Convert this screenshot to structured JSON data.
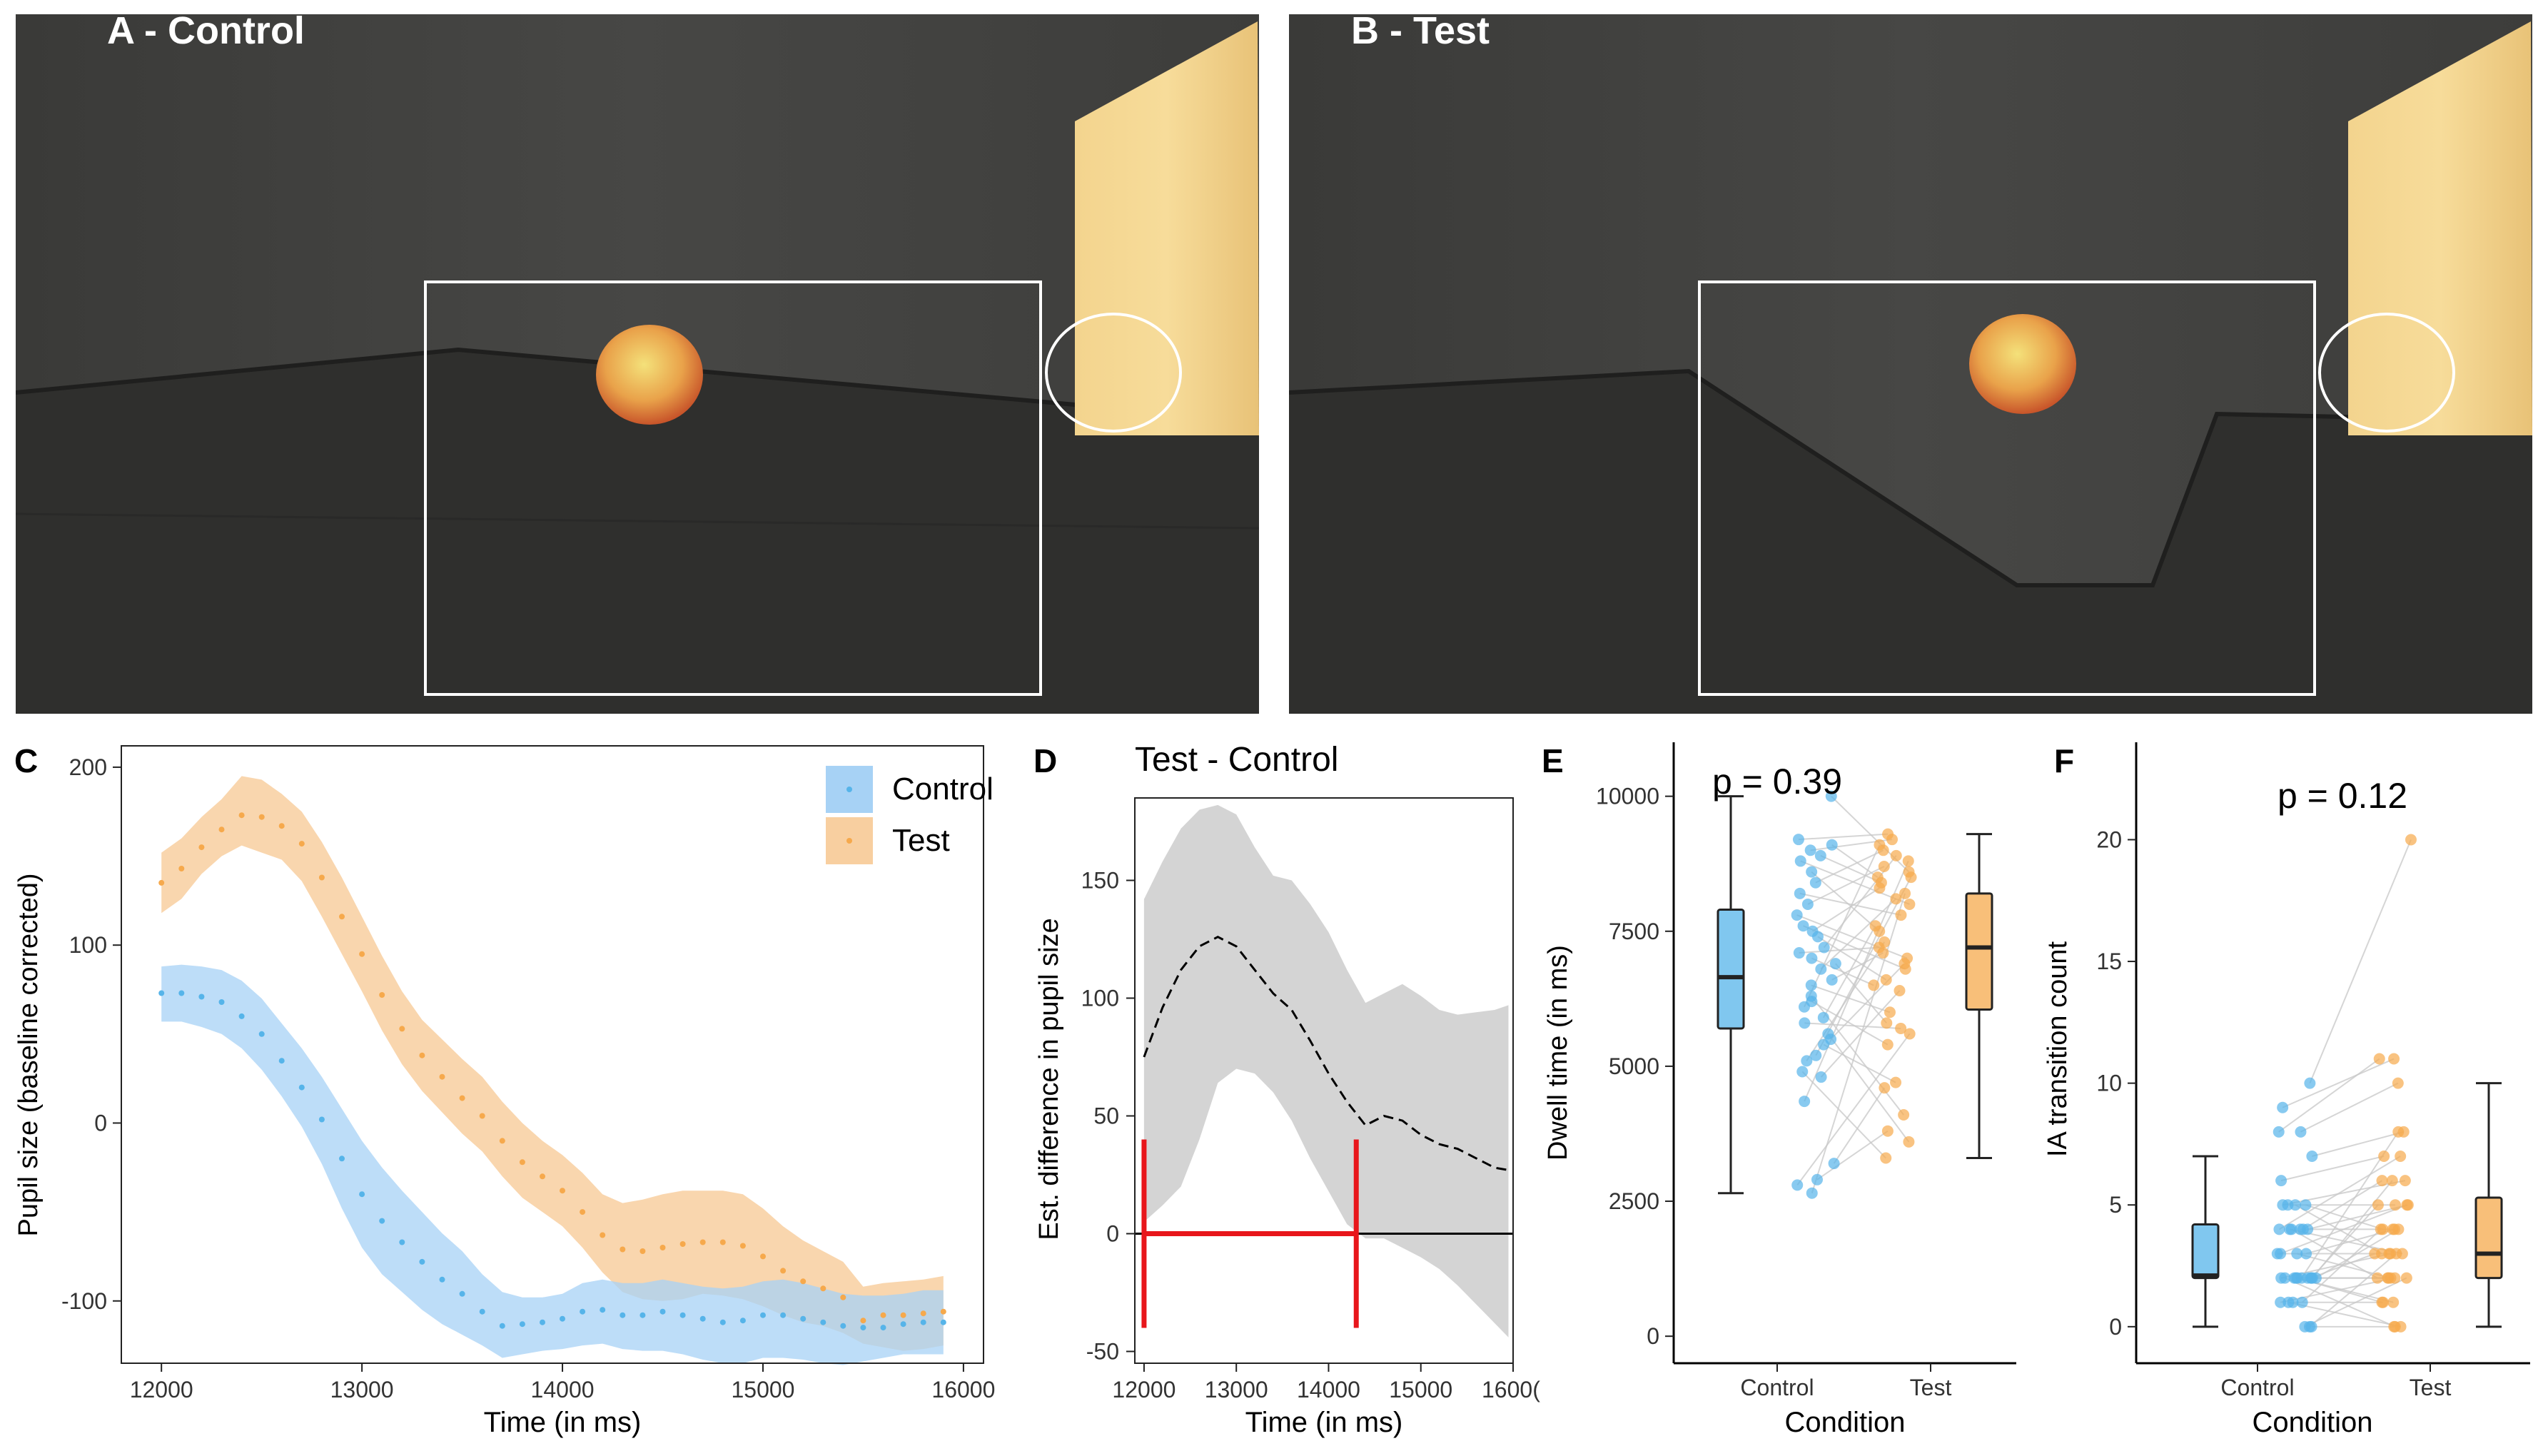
{
  "photos": {
    "a": {
      "label": "A - Control"
    },
    "b": {
      "label": "B - Test"
    }
  },
  "panel_letters": {
    "c": "C",
    "d": "D",
    "e": "E",
    "f": "F"
  },
  "colors": {
    "control": "#56B4E9",
    "test": "#F6A94C",
    "ribbon_control": "#A7D2F5",
    "ribbon_test": "#F8CFA0",
    "ci_gray": "#D4D4D4",
    "sig_red": "#E8161B"
  },
  "chart_data": [
    {
      "id": "C",
      "type": "line",
      "xlabel": "Time (in ms)",
      "ylabel": "Pupil size (baseline corrected)",
      "xlim": [
        11800,
        16100
      ],
      "ylim": [
        -135,
        212
      ],
      "xticks": [
        "12000",
        "13000",
        "14000",
        "15000",
        "16000"
      ],
      "yticks": [
        "200",
        "100",
        "0",
        "-100"
      ],
      "legend_position": "top-right",
      "series": [
        {
          "name": "Control",
          "x": [
            12000,
            12100,
            12200,
            12300,
            12400,
            12500,
            12600,
            12700,
            12800,
            12900,
            13000,
            13100,
            13200,
            13300,
            13400,
            13500,
            13600,
            13700,
            13800,
            13900,
            14000,
            14100,
            14200,
            14300,
            14400,
            14500,
            14600,
            14700,
            14800,
            14900,
            15000,
            15100,
            15200,
            15300,
            15400,
            15500,
            15600,
            15700,
            15800,
            15900
          ],
          "mean": [
            73,
            73,
            71,
            68,
            60,
            50,
            35,
            20,
            2,
            -20,
            -40,
            -55,
            -67,
            -78,
            -88,
            -96,
            -106,
            -114,
            -113,
            -112,
            -110,
            -106,
            -105,
            -108,
            -108,
            -106,
            -108,
            -110,
            -112,
            -111,
            -108,
            -108,
            -110,
            -112,
            -114,
            -115,
            -115,
            -113,
            -112,
            -112
          ],
          "lower": [
            57,
            57,
            54,
            50,
            42,
            30,
            15,
            -2,
            -23,
            -48,
            -70,
            -85,
            -95,
            -105,
            -113,
            -119,
            -125,
            -132,
            -130,
            -128,
            -127,
            -125,
            -124,
            -127,
            -128,
            -128,
            -130,
            -133,
            -135,
            -135,
            -132,
            -132,
            -133,
            -135,
            -136,
            -134,
            -132,
            -130,
            -130,
            -130
          ],
          "upper": [
            88,
            89,
            88,
            86,
            80,
            70,
            56,
            42,
            26,
            8,
            -10,
            -25,
            -38,
            -50,
            -62,
            -72,
            -85,
            -95,
            -98,
            -98,
            -96,
            -90,
            -88,
            -90,
            -90,
            -88,
            -90,
            -92,
            -93,
            -92,
            -89,
            -88,
            -90,
            -93,
            -96,
            -97,
            -97,
            -96,
            -94,
            -94
          ]
        },
        {
          "name": "Test",
          "x": [
            12000,
            12100,
            12200,
            12300,
            12400,
            12500,
            12600,
            12700,
            12800,
            12900,
            13000,
            13100,
            13200,
            13300,
            13400,
            13500,
            13600,
            13700,
            13800,
            13900,
            14000,
            14100,
            14200,
            14300,
            14400,
            14500,
            14600,
            14700,
            14800,
            14900,
            15000,
            15100,
            15200,
            15300,
            15400,
            15500,
            15600,
            15700,
            15800,
            15900
          ],
          "mean": [
            135,
            143,
            155,
            165,
            173,
            172,
            167,
            157,
            138,
            116,
            95,
            72,
            53,
            38,
            26,
            14,
            4,
            -10,
            -22,
            -30,
            -38,
            -50,
            -63,
            -71,
            -72,
            -70,
            -68,
            -67,
            -67,
            -69,
            -75,
            -83,
            -89,
            -93,
            -98,
            -111,
            -108,
            -108,
            -107,
            -106
          ],
          "lower": [
            118,
            126,
            140,
            150,
            156,
            152,
            148,
            136,
            116,
            95,
            74,
            52,
            33,
            18,
            6,
            -6,
            -16,
            -30,
            -42,
            -50,
            -58,
            -70,
            -84,
            -95,
            -99,
            -100,
            -99,
            -96,
            -97,
            -99,
            -103,
            -108,
            -112,
            -114,
            -118,
            -124,
            -126,
            -128,
            -127,
            -125
          ],
          "upper": [
            152,
            160,
            172,
            182,
            195,
            193,
            185,
            175,
            158,
            138,
            116,
            94,
            74,
            58,
            47,
            36,
            26,
            12,
            0,
            -10,
            -18,
            -28,
            -40,
            -45,
            -43,
            -40,
            -38,
            -38,
            -38,
            -40,
            -48,
            -58,
            -66,
            -72,
            -78,
            -92,
            -90,
            -89,
            -88,
            -86
          ]
        }
      ]
    },
    {
      "id": "D",
      "type": "line",
      "title": "Test - Control",
      "xlabel": "Time (in ms)",
      "ylabel": "Est. difference in pupil size",
      "xlim": [
        11900,
        16000
      ],
      "ylim": [
        -55,
        185
      ],
      "xticks": [
        "12000",
        "13000",
        "14000",
        "15000",
        "1600("
      ],
      "yticks": [
        "150",
        "100",
        "50",
        "0",
        "-50"
      ],
      "x": [
        12000,
        12200,
        12400,
        12600,
        12800,
        13000,
        13200,
        13400,
        13600,
        13800,
        14000,
        14200,
        14400,
        14600,
        14800,
        15000,
        15200,
        15400,
        15600,
        15800,
        15950
      ],
      "estimate": [
        75,
        96,
        112,
        122,
        126,
        122,
        112,
        102,
        95,
        82,
        68,
        56,
        46,
        50,
        48,
        42,
        38,
        36,
        32,
        28,
        27
      ],
      "lower": [
        5,
        12,
        20,
        40,
        64,
        70,
        68,
        60,
        48,
        32,
        18,
        4,
        -2,
        -2,
        -6,
        -10,
        -15,
        -22,
        -30,
        -38,
        -44
      ],
      "upper": [
        142,
        158,
        172,
        180,
        182,
        178,
        164,
        152,
        150,
        140,
        128,
        112,
        98,
        102,
        106,
        101,
        95,
        93,
        94,
        95,
        97
      ],
      "significant_interval": [
        12000,
        14300
      ]
    },
    {
      "id": "E",
      "type": "scatter",
      "annotation": "p = 0.39",
      "xlabel": "Condition",
      "ylabel": "Dwell time (in ms)",
      "categories": [
        "Control",
        "Test"
      ],
      "ylim": [
        -500,
        11000
      ],
      "yticks": [
        "10000",
        "7500",
        "5000",
        "2500",
        "0"
      ],
      "boxes": [
        {
          "name": "Control",
          "min": 2650,
          "q1": 5700,
          "median": 6650,
          "q3": 7900,
          "max": 10000
        },
        {
          "name": "Test",
          "min": 3300,
          "q1": 6050,
          "median": 7200,
          "q3": 8200,
          "max": 9300
        }
      ],
      "pairs": [
        [
          10000,
          8600
        ],
        [
          9200,
          9300
        ],
        [
          9100,
          8500
        ],
        [
          9000,
          9200
        ],
        [
          8900,
          8400
        ],
        [
          8800,
          8000
        ],
        [
          8600,
          7500
        ],
        [
          8400,
          9000
        ],
        [
          8200,
          7800
        ],
        [
          8000,
          8700
        ],
        [
          7800,
          7000
        ],
        [
          7600,
          6800
        ],
        [
          7500,
          8300
        ],
        [
          7400,
          6600
        ],
        [
          7200,
          8900
        ],
        [
          7100,
          7200
        ],
        [
          7000,
          6500
        ],
        [
          6900,
          5800
        ],
        [
          6800,
          8100
        ],
        [
          6600,
          7100
        ],
        [
          6500,
          6000
        ],
        [
          6300,
          4100
        ],
        [
          6200,
          5400
        ],
        [
          6100,
          9100
        ],
        [
          5900,
          7600
        ],
        [
          5800,
          5700
        ],
        [
          5600,
          3600
        ],
        [
          5500,
          6900
        ],
        [
          5400,
          4700
        ],
        [
          5200,
          8500
        ],
        [
          5100,
          7300
        ],
        [
          4900,
          3300
        ],
        [
          4800,
          6400
        ],
        [
          4350,
          8800
        ],
        [
          3200,
          4600
        ],
        [
          2900,
          3800
        ],
        [
          2800,
          5600
        ],
        [
          2650,
          8200
        ]
      ]
    },
    {
      "id": "F",
      "type": "scatter",
      "annotation": "p = 0.12",
      "xlabel": "Condition",
      "ylabel": "IA transition count",
      "categories": [
        "Control",
        "Test"
      ],
      "ylim": [
        -1.5,
        24
      ],
      "yticks": [
        "20",
        "15",
        "10",
        "5",
        "0"
      ],
      "boxes": [
        {
          "name": "Control",
          "min": 0,
          "q1": 2,
          "median": 2.1,
          "q3": 4.2,
          "max": 7
        },
        {
          "name": "Test",
          "min": 0,
          "q1": 2,
          "median": 3,
          "q3": 5.3,
          "max": 10
        }
      ],
      "pairs": [
        [
          10,
          20
        ],
        [
          9,
          11
        ],
        [
          8,
          10
        ],
        [
          8,
          11
        ],
        [
          7,
          8
        ],
        [
          6,
          7
        ],
        [
          5,
          6
        ],
        [
          5,
          5
        ],
        [
          5,
          4
        ],
        [
          5,
          3
        ],
        [
          4,
          6
        ],
        [
          4,
          5
        ],
        [
          4,
          3
        ],
        [
          4,
          2
        ],
        [
          4,
          4
        ],
        [
          4,
          7
        ],
        [
          3,
          4
        ],
        [
          3,
          2
        ],
        [
          3,
          3
        ],
        [
          3,
          5
        ],
        [
          2,
          3
        ],
        [
          2,
          1
        ],
        [
          2,
          2
        ],
        [
          2,
          4
        ],
        [
          2,
          6
        ],
        [
          2,
          3
        ],
        [
          2,
          0
        ],
        [
          2,
          1
        ],
        [
          2,
          2
        ],
        [
          2,
          5
        ],
        [
          2,
          8
        ],
        [
          1,
          2
        ],
        [
          1,
          0
        ],
        [
          1,
          4
        ],
        [
          1,
          1
        ],
        [
          0,
          3
        ],
        [
          0,
          0
        ],
        [
          0,
          2
        ]
      ]
    }
  ]
}
